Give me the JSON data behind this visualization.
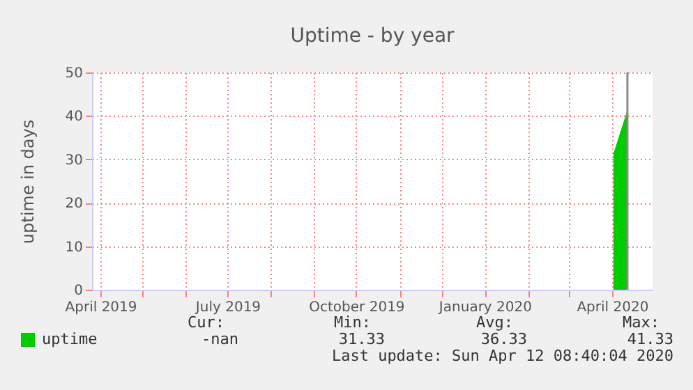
{
  "chart_data": {
    "type": "area",
    "title": "Uptime - by year",
    "ylabel": "uptime in days",
    "x": [
      "2020-04-02",
      "2020-04-12"
    ],
    "series": [
      {
        "name": "uptime",
        "color": "#00cc00",
        "values": [
          31.33,
          41.33
        ]
      }
    ],
    "xlim": [
      "2019-03-26",
      "2020-04-30"
    ],
    "xticks": [
      {
        "value": "2019-04-01",
        "label": "April 2019"
      },
      {
        "value": "2019-05-01",
        "label": null
      },
      {
        "value": "2019-06-01",
        "label": null
      },
      {
        "value": "2019-07-01",
        "label": "July 2019"
      },
      {
        "value": "2019-08-01",
        "label": null
      },
      {
        "value": "2019-09-01",
        "label": null
      },
      {
        "value": "2019-10-01",
        "label": "October 2019"
      },
      {
        "value": "2019-11-01",
        "label": null
      },
      {
        "value": "2019-12-01",
        "label": null
      },
      {
        "value": "2020-01-01",
        "label": "January 2020"
      },
      {
        "value": "2020-02-01",
        "label": null
      },
      {
        "value": "2020-03-01",
        "label": null
      },
      {
        "value": "2020-04-01",
        "label": "April 2020"
      }
    ],
    "ylim": [
      0,
      50
    ],
    "yticks": [
      0,
      10,
      20,
      30,
      40,
      50
    ],
    "ref_lines": [
      {
        "axis": "x",
        "value": "2020-04-12",
        "color": "#888888"
      }
    ],
    "grid": true,
    "legend": "bottom left",
    "annotations": [
      "Cur:",
      "Min:",
      "Avg:",
      "Max:",
      "-nan",
      "31.33",
      "36.33",
      "41.33",
      "Last update: Sun Apr 12 08:40:04 2020"
    ]
  }
}
